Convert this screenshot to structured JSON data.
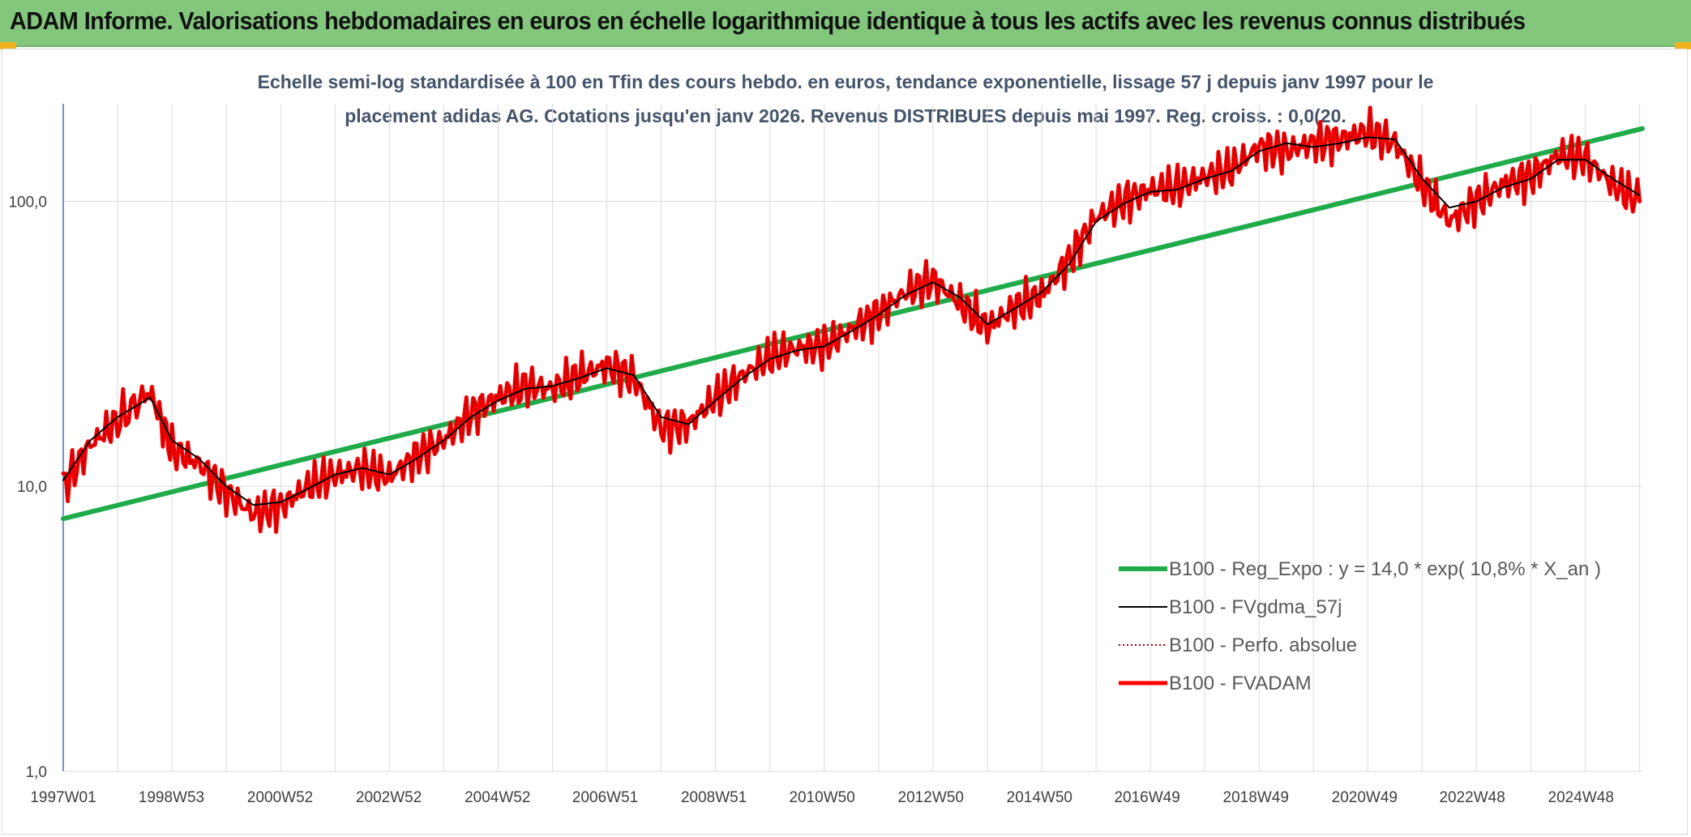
{
  "header": {
    "title": "ADAM Informe. Valorisations hebdomadaires en euros en échelle logarithmique identique à tous les actifs avec les revenus connus distribués"
  },
  "chart_data": {
    "type": "line",
    "title_line1": "Echelle semi-log standardisée à 100 en Tfin des cours hebdo. en euros, tendance exponentielle, lissage 57 j depuis janv 1997 pour le",
    "title_line2": "placement adidas AG. Cotations jusqu'en janv 2026. Revenus DISTRIBUES depuis mai 1997. Reg. croiss. : 0,0(20.",
    "y_scale": "log",
    "ylim": [
      1,
      220
    ],
    "y_ticks": [
      1,
      10,
      100
    ],
    "y_tick_labels": [
      "1,0",
      "10,0",
      "100,0"
    ],
    "xlim": [
      1997.0,
      2026.05
    ],
    "x_ticks": [
      1997.0,
      1998.99,
      2000.99,
      2002.99,
      2004.99,
      2006.97,
      2008.97,
      2010.96,
      2012.96,
      2014.96,
      2016.94,
      2018.94,
      2020.94,
      2022.92,
      2024.92
    ],
    "x_tick_labels": [
      "1997W01",
      "1998W53",
      "2000W52",
      "2002W52",
      "2004W52",
      "2006W51",
      "2008W51",
      "2010W50",
      "2012W50",
      "2014W50",
      "2016W49",
      "2018W49",
      "2020W49",
      "2022W48",
      "2024W48"
    ],
    "grid": true,
    "legend_position": "bottom-right",
    "series": [
      {
        "name": "B100 - Reg_Expo : y = 14,0 * exp( 10,8% *  X_an )",
        "color": "#1fab4a",
        "style": "solid-thick",
        "x": [
          1997.0,
          2026.05
        ],
        "values": [
          7.7,
          180
        ]
      },
      {
        "name": "B100 - FVgdma_57j",
        "color": "#000000",
        "style": "solid",
        "x": [
          1997.0,
          1997.5,
          1998.0,
          1998.6,
          1999.0,
          1999.5,
          2000.0,
          2000.5,
          2001.0,
          2001.5,
          2002.0,
          2002.5,
          2003.0,
          2003.5,
          2004.0,
          2004.5,
          2005.0,
          2005.5,
          2006.0,
          2006.5,
          2007.0,
          2007.5,
          2008.0,
          2008.5,
          2009.0,
          2009.5,
          2010.0,
          2010.5,
          2011.0,
          2011.5,
          2012.0,
          2012.5,
          2013.0,
          2013.5,
          2014.0,
          2014.5,
          2015.0,
          2015.5,
          2016.0,
          2016.5,
          2017.0,
          2017.5,
          2018.0,
          2018.5,
          2019.0,
          2019.5,
          2020.0,
          2020.5,
          2021.0,
          2021.5,
          2022.0,
          2022.5,
          2023.0,
          2023.5,
          2024.0,
          2024.5,
          2025.0,
          2025.5,
          2026.0
        ],
        "values": [
          10.5,
          14.5,
          17.5,
          20.5,
          14.5,
          12.5,
          10.0,
          8.6,
          8.8,
          9.8,
          11.0,
          11.6,
          11.0,
          12.5,
          14.5,
          17.5,
          20.0,
          22.0,
          22.5,
          24.0,
          26.0,
          24.5,
          17.5,
          16.5,
          20.0,
          24.0,
          28.0,
          30.0,
          31.0,
          35.0,
          40.0,
          47.0,
          52.0,
          46.0,
          37.0,
          42.0,
          48.0,
          60.0,
          85.0,
          98.0,
          108.0,
          110.0,
          120.0,
          128.0,
          150.0,
          160.0,
          155.0,
          160.0,
          168.0,
          165.0,
          120.0,
          95.0,
          100.0,
          112.0,
          120.0,
          140.0,
          140.0,
          120.0,
          105.0
        ]
      },
      {
        "name": "B100 - Perfo. absolue",
        "color": "#c00000",
        "style": "dotted",
        "x": [
          1997.0,
          1997.5,
          1998.0,
          1998.6,
          1999.0,
          1999.5,
          2000.0,
          2000.5,
          2001.0,
          2001.5,
          2002.0,
          2002.5,
          2003.0,
          2003.5,
          2004.0,
          2004.5,
          2005.0,
          2005.5,
          2006.0,
          2006.5,
          2007.0,
          2007.5,
          2008.0,
          2008.5,
          2009.0,
          2009.5,
          2010.0,
          2010.5,
          2011.0,
          2011.5,
          2012.0,
          2012.5,
          2013.0,
          2013.5,
          2014.0,
          2014.5,
          2015.0,
          2015.5,
          2016.0,
          2016.5,
          2017.0,
          2017.5,
          2018.0,
          2018.5,
          2019.0,
          2019.5,
          2020.0,
          2020.5,
          2021.0,
          2021.5,
          2022.0,
          2022.5,
          2023.0,
          2023.5,
          2024.0,
          2024.5,
          2025.0,
          2025.5,
          2026.0
        ],
        "values": [
          10.0,
          14.0,
          17.0,
          21.5,
          13.5,
          12.0,
          9.5,
          8.0,
          8.5,
          10.0,
          11.0,
          11.5,
          10.8,
          12.8,
          14.5,
          18.0,
          20.5,
          22.5,
          22.0,
          24.5,
          26.5,
          24.0,
          16.0,
          16.5,
          20.5,
          24.5,
          28.5,
          30.5,
          31.0,
          35.5,
          40.5,
          48.0,
          53.0,
          44.0,
          36.0,
          42.5,
          47.0,
          62.0,
          88.0,
          100.0,
          110.0,
          112.0,
          122.0,
          130.0,
          155.0,
          150.0,
          160.0,
          165.0,
          175.0,
          160.0,
          115.0,
          85.0,
          100.0,
          115.0,
          122.0,
          145.0,
          142.0,
          115.0,
          100.0
        ]
      },
      {
        "name": "B100 - FVADAM",
        "color": "#ff0000",
        "style": "solid-thick",
        "x": [
          1997.0,
          1997.5,
          1998.0,
          1998.6,
          1999.0,
          1999.5,
          2000.0,
          2000.5,
          2001.0,
          2001.5,
          2002.0,
          2002.5,
          2003.0,
          2003.5,
          2004.0,
          2004.5,
          2005.0,
          2005.5,
          2006.0,
          2006.5,
          2007.0,
          2007.5,
          2008.0,
          2008.5,
          2009.0,
          2009.5,
          2010.0,
          2010.5,
          2011.0,
          2011.5,
          2012.0,
          2012.5,
          2013.0,
          2013.5,
          2014.0,
          2014.5,
          2015.0,
          2015.5,
          2016.0,
          2016.5,
          2017.0,
          2017.5,
          2018.0,
          2018.5,
          2019.0,
          2019.5,
          2020.0,
          2020.5,
          2021.0,
          2021.5,
          2022.0,
          2022.5,
          2023.0,
          2023.5,
          2024.0,
          2024.5,
          2025.0,
          2025.5,
          2026.0
        ],
        "values": [
          10.0,
          14.0,
          17.0,
          21.5,
          13.5,
          12.0,
          9.5,
          8.0,
          8.5,
          10.0,
          11.0,
          11.5,
          10.8,
          12.8,
          14.5,
          18.0,
          20.5,
          22.5,
          22.0,
          24.5,
          26.5,
          24.0,
          16.0,
          16.5,
          20.5,
          24.5,
          28.5,
          30.5,
          31.0,
          35.5,
          40.5,
          48.0,
          53.0,
          44.0,
          36.0,
          42.5,
          47.0,
          62.0,
          88.0,
          100.0,
          110.0,
          112.0,
          122.0,
          130.0,
          155.0,
          150.0,
          160.0,
          165.0,
          175.0,
          160.0,
          115.0,
          85.0,
          100.0,
          115.0,
          122.0,
          145.0,
          142.0,
          115.0,
          100.0
        ]
      }
    ]
  }
}
